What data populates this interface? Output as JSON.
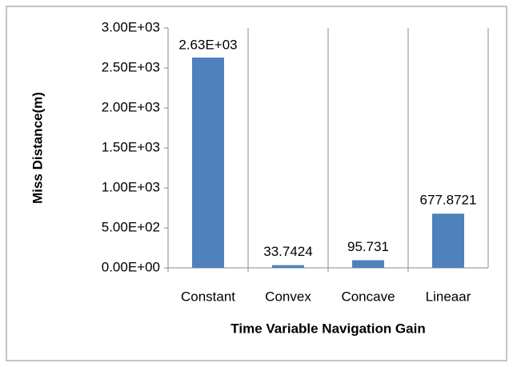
{
  "chart_data": {
    "type": "bar",
    "xlabel": "Time Variable Navigation Gain",
    "ylabel": "Miss Distance(m)",
    "categories": [
      "Constant",
      "Convex",
      "Concave",
      "Lineaar"
    ],
    "values": [
      2630,
      33.7424,
      95.731,
      677.8721
    ],
    "value_labels": [
      "2.63E+03",
      "33.7424",
      "95.731",
      "677.8721"
    ],
    "color": "#4f81bd",
    "ylim": [
      0,
      3000
    ],
    "yticks": [
      {
        "value": 0,
        "label": "0.00E+00"
      },
      {
        "value": 500,
        "label": "5.00E+02"
      },
      {
        "value": 1000,
        "label": "1.00E+03"
      },
      {
        "value": 1500,
        "label": "1.50E+03"
      },
      {
        "value": 2000,
        "label": "2.00E+03"
      },
      {
        "value": 2500,
        "label": "2.50E+03"
      },
      {
        "value": 3000,
        "label": "3.00E+03"
      }
    ],
    "xgrid": true
  }
}
